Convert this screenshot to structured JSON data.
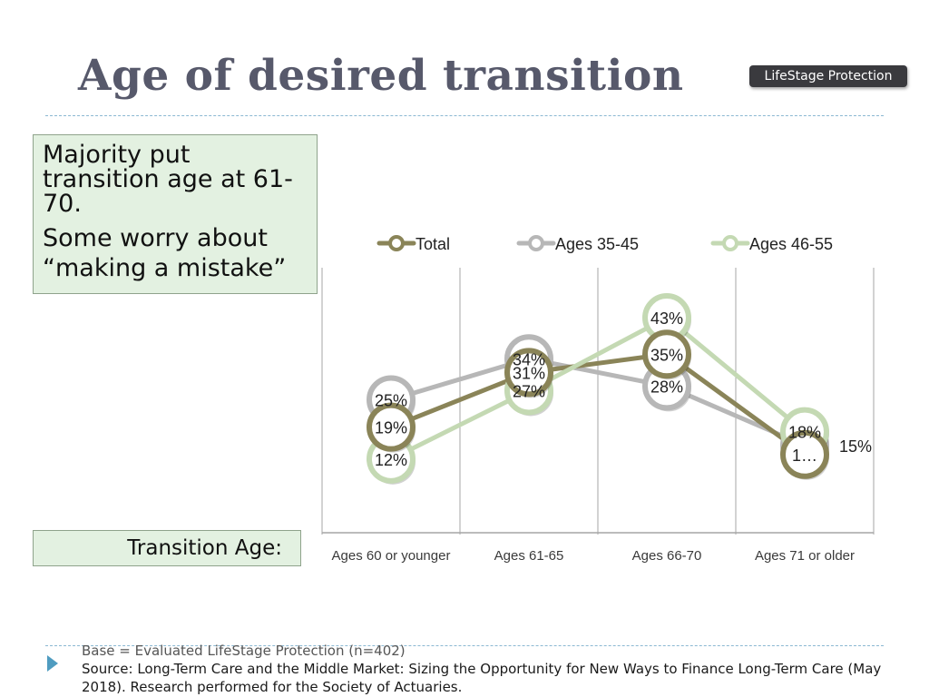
{
  "header": {
    "title": "Age of desired transition",
    "badge": "LifeStage Protection"
  },
  "callout": {
    "line1": "Majority put transition age at 61-70.",
    "line2": "Some worry about “making a mistake”"
  },
  "axis_box_label": "Transition Age:",
  "footer": {
    "base": "Base = Evaluated LifeStage Protection (n=402)",
    "source": "Source:  Long-Term Care and the Middle Market: Sizing the Opportunity for New Ways to Finance Long-Term Care (May 2018). Research performed for the Society of Actuaries."
  },
  "colors": {
    "title": "#57596b",
    "badge_bg": "#3a3a3e",
    "callout_bg": "#e3f1e1",
    "rule": "#8bb8d2",
    "footer_arrow": "#4f9cc0"
  },
  "icons": {
    "footer_bullet": "triangle-right-icon"
  },
  "chart_data": {
    "type": "line",
    "categories": [
      "Ages 60 or younger",
      "Ages 61-65",
      "Ages 66-70",
      "Ages 71 or older"
    ],
    "series": [
      {
        "name": "Ages 35-45",
        "color": "#b7b7b7",
        "values": [
          25,
          34,
          28,
          15
        ],
        "labels": [
          "25%",
          "34%",
          "28%",
          "15%"
        ]
      },
      {
        "name": "Total",
        "color": "#8a8458",
        "values": [
          19,
          31,
          35,
          13
        ],
        "labels": [
          "19%",
          "31%",
          "35%",
          "1…"
        ]
      },
      {
        "name": "Ages 46-55",
        "color": "#c4d9b3",
        "values": [
          12,
          27,
          43,
          18
        ],
        "labels": [
          "12%",
          "27%",
          "43%",
          "18%"
        ]
      }
    ],
    "legend_order": [
      "Total",
      "Ages 35-45",
      "Ages 46-55"
    ],
    "legend_position": "top",
    "grid": "vertical",
    "ylim": [
      5,
      45
    ]
  }
}
